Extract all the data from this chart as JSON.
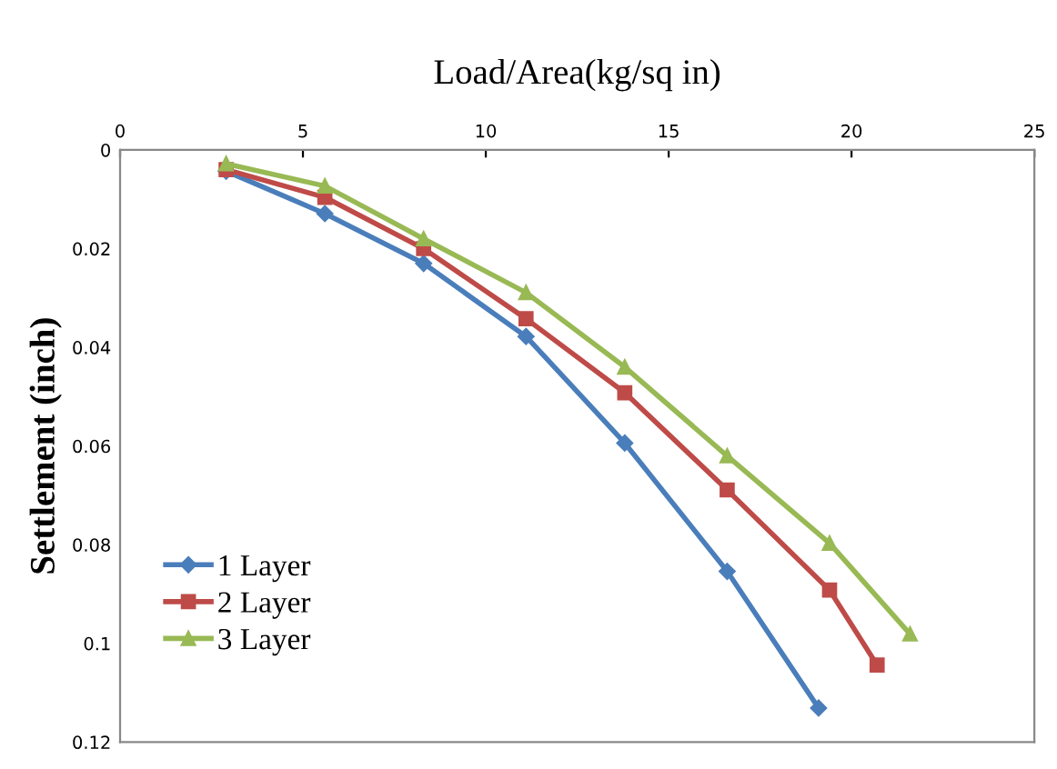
{
  "chart_data": {
    "type": "line",
    "xlabel": "Load/Area(kg/sq in)",
    "ylabel": "Settlement (inch)",
    "xlim": [
      0,
      25
    ],
    "xticks": [
      0,
      5,
      10,
      15,
      20,
      25
    ],
    "ylim": [
      0.12,
      0
    ],
    "yticks": [
      0,
      0.02,
      0.04,
      0.06,
      0.08,
      0.1,
      0.12
    ],
    "grid": false,
    "legend": "bottom left",
    "line_style": "solid",
    "series": [
      {
        "name": "1 Layer",
        "color": "#4a7ebb",
        "marker": "diamond",
        "x": [
          2.9,
          5.6,
          8.3,
          11.1,
          13.8,
          16.6,
          19.1
        ],
        "values": [
          0.0043,
          0.0129,
          0.023,
          0.0378,
          0.0594,
          0.0854,
          0.1131
        ]
      },
      {
        "name": "2 Layer",
        "color": "#be4b48",
        "marker": "square",
        "x": [
          2.9,
          5.6,
          8.3,
          11.1,
          13.8,
          16.6,
          19.4,
          20.7
        ],
        "values": [
          0.004,
          0.0096,
          0.02,
          0.0342,
          0.0492,
          0.0689,
          0.0892,
          0.1044
        ]
      },
      {
        "name": "3 Layer",
        "color": "#98b954",
        "marker": "triangle",
        "x": [
          2.9,
          5.6,
          8.3,
          11.1,
          13.8,
          16.6,
          19.4,
          21.6
        ],
        "values": [
          0.0028,
          0.0073,
          0.018,
          0.0289,
          0.044,
          0.062,
          0.0797,
          0.0981
        ]
      }
    ]
  }
}
